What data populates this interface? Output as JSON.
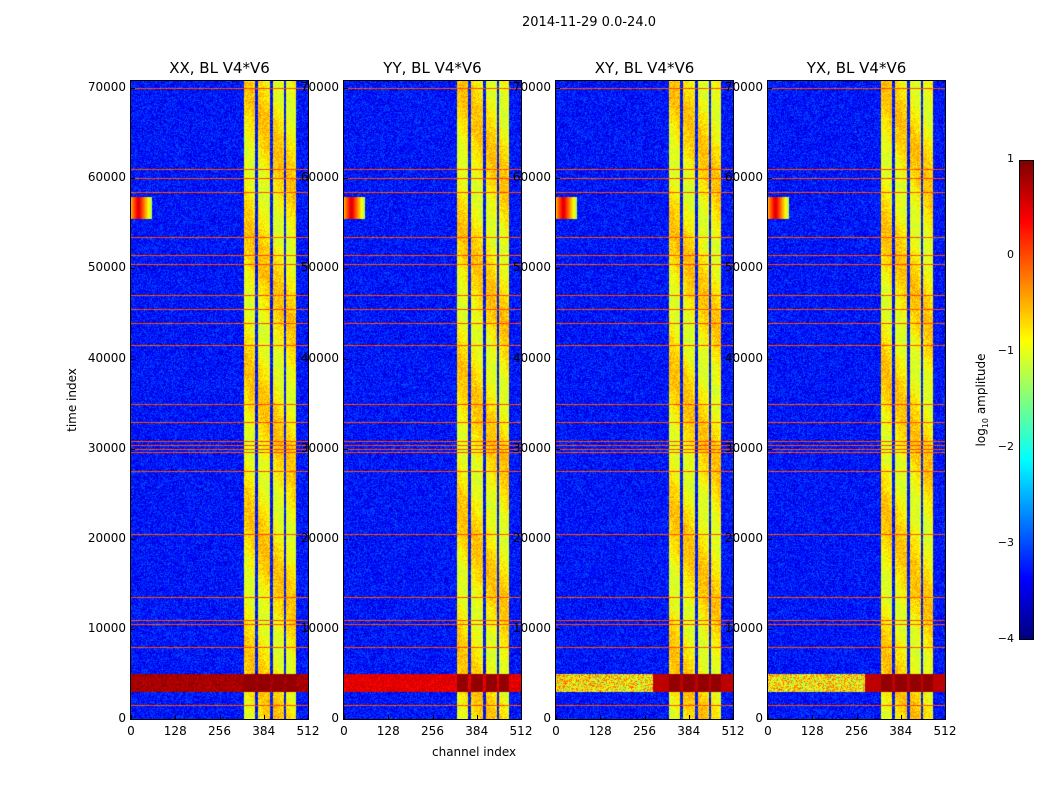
{
  "chart_data": {
    "type": "heatmap",
    "title": "2014-11-29 0.0-24.0",
    "xlabel": "channel index",
    "ylabel": "time index",
    "xlim": [
      0,
      512
    ],
    "ylim": [
      0,
      70800
    ],
    "xticks": [
      0,
      128,
      256,
      384,
      512
    ],
    "yticks": [
      0,
      10000,
      20000,
      30000,
      40000,
      50000,
      60000,
      70000
    ],
    "panels": [
      {
        "title": "XX, BL V4*V6",
        "block_level": 0.9
      },
      {
        "title": "YY, BL V4*V6",
        "block_level": 0.6
      },
      {
        "title": "XY, BL V4*V6",
        "block_level": 0.7
      },
      {
        "title": "YX, BL V4*V6",
        "block_level": 0.7
      }
    ],
    "background_level": -3.3,
    "bright_channel_segments": [
      [
        324,
        358
      ],
      [
        366,
        402
      ],
      [
        408,
        440
      ],
      [
        448,
        477
      ]
    ],
    "bright_level": -0.8,
    "rfi_rows": [
      1500,
      8000,
      10500,
      11000,
      13500,
      20500,
      27500,
      29600,
      30000,
      30400,
      30800,
      33000,
      35000,
      41500,
      44000,
      45500,
      47000,
      50500,
      51500,
      53500,
      58500,
      60000,
      61000,
      70000
    ],
    "rfi_level": 0,
    "strong_block_time_range": [
      3000,
      5000
    ],
    "blob": {
      "channels": [
        0,
        60
      ],
      "times": [
        55500,
        58000
      ],
      "level": 0.6
    },
    "colorbar": {
      "label": "log10 amplitude",
      "label_base": "log",
      "label_sub": "10",
      "label_rest": " amplitude",
      "range": [
        -4,
        1
      ],
      "ticks": [
        1,
        0,
        -1,
        -2,
        -3,
        -4
      ],
      "tick_labels": [
        "1",
        "0",
        "−1",
        "−2",
        "−3",
        "−4"
      ],
      "colormap": "jet"
    }
  }
}
